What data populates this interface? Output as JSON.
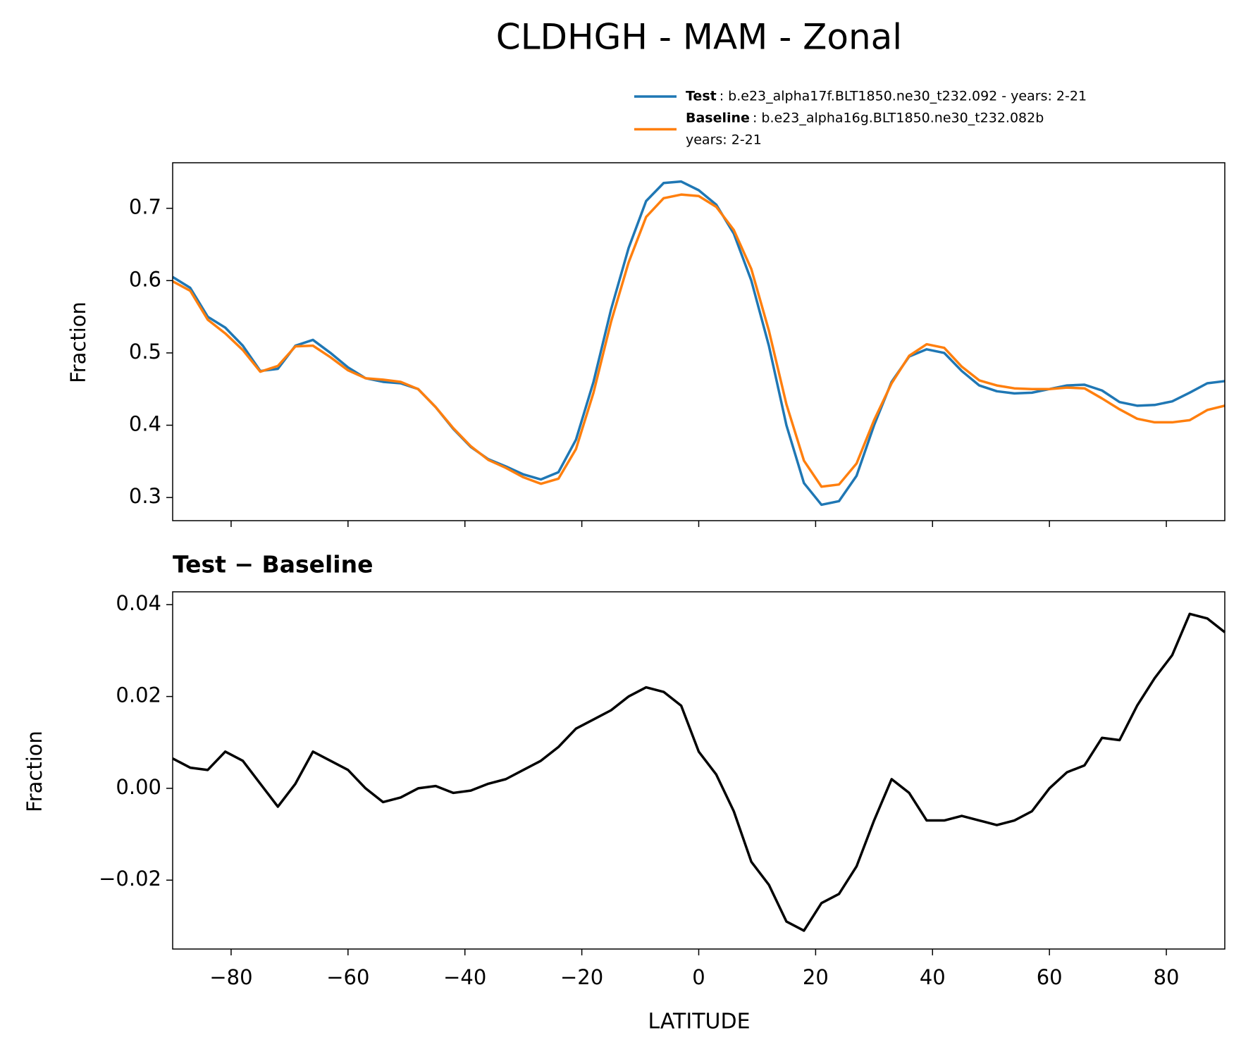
{
  "chart_data": [
    {
      "type": "line",
      "title": "CLDHGH - MAM - Zonal",
      "y_label": "Fraction",
      "x": [
        -90,
        -87,
        -84,
        -81,
        -78,
        -75,
        -72,
        -69,
        -66,
        -63,
        -60,
        -57,
        -54,
        -51,
        -48,
        -45,
        -42,
        -39,
        -36,
        -33,
        -30,
        -27,
        -24,
        -21,
        -18,
        -15,
        -12,
        -9,
        -6,
        -3,
        0,
        3,
        6,
        9,
        12,
        15,
        18,
        21,
        24,
        27,
        30,
        33,
        36,
        39,
        42,
        45,
        48,
        51,
        54,
        57,
        60,
        63,
        66,
        69,
        72,
        75,
        78,
        81,
        84,
        87,
        90
      ],
      "series": [
        {
          "name": "Test",
          "description": [
            ": b.e23_alpha17f.BLT1850.ne30_t232.092 - years: 2-21"
          ],
          "color": "#1f77b4",
          "values": [
            0.605,
            0.59,
            0.55,
            0.535,
            0.51,
            0.475,
            0.478,
            0.51,
            0.518,
            0.5,
            0.48,
            0.465,
            0.46,
            0.458,
            0.45,
            0.425,
            0.395,
            0.37,
            0.353,
            0.343,
            0.332,
            0.325,
            0.335,
            0.38,
            0.46,
            0.56,
            0.645,
            0.71,
            0.735,
            0.737,
            0.725,
            0.705,
            0.665,
            0.6,
            0.51,
            0.4,
            0.32,
            0.29,
            0.295,
            0.33,
            0.4,
            0.46,
            0.495,
            0.505,
            0.5,
            0.475,
            0.455,
            0.447,
            0.444,
            0.445,
            0.45,
            0.455,
            0.456,
            0.448,
            0.432,
            0.427,
            0.428,
            0.433,
            0.445,
            0.458,
            0.461
          ]
        },
        {
          "name": "Baseline",
          "description": [
            ": b.e23_alpha16g.BLT1850.ne30_t232.082b",
            "years: 2-21"
          ],
          "color": "#ff7f0e",
          "values": [
            0.599,
            0.586,
            0.546,
            0.527,
            0.504,
            0.474,
            0.482,
            0.509,
            0.51,
            0.494,
            0.476,
            0.465,
            0.463,
            0.46,
            0.45,
            0.425,
            0.396,
            0.371,
            0.352,
            0.341,
            0.328,
            0.319,
            0.326,
            0.367,
            0.445,
            0.543,
            0.625,
            0.688,
            0.714,
            0.719,
            0.717,
            0.702,
            0.67,
            0.616,
            0.531,
            0.429,
            0.351,
            0.315,
            0.318,
            0.347,
            0.407,
            0.458,
            0.496,
            0.512,
            0.507,
            0.481,
            0.462,
            0.455,
            0.451,
            0.45,
            0.45,
            0.452,
            0.451,
            0.437,
            0.422,
            0.409,
            0.404,
            0.404,
            0.407,
            0.421,
            0.427
          ]
        }
      ],
      "xlim": [
        -90,
        90
      ],
      "xticks": [
        -80,
        -60,
        -40,
        -20,
        0,
        20,
        40,
        60,
        80
      ],
      "ylim": [
        0.268,
        0.763
      ],
      "yticks": [
        0.3,
        0.4,
        0.5,
        0.6,
        0.7
      ]
    },
    {
      "type": "line",
      "title": "Test − Baseline",
      "y_label": "Fraction",
      "x_label": "LATITUDE",
      "x": [
        -90,
        -87,
        -84,
        -81,
        -78,
        -75,
        -72,
        -69,
        -66,
        -63,
        -60,
        -57,
        -54,
        -51,
        -48,
        -45,
        -42,
        -39,
        -36,
        -33,
        -30,
        -27,
        -24,
        -21,
        -18,
        -15,
        -12,
        -9,
        -6,
        -3,
        0,
        3,
        6,
        9,
        12,
        15,
        18,
        21,
        24,
        27,
        30,
        33,
        36,
        39,
        42,
        45,
        48,
        51,
        54,
        57,
        60,
        63,
        66,
        69,
        72,
        75,
        78,
        81,
        84,
        87,
        90
      ],
      "series": [
        {
          "color": "#000000",
          "values": [
            0.0065,
            0.0045,
            0.004,
            0.008,
            0.006,
            0.001,
            -0.004,
            0.001,
            0.008,
            0.006,
            0.004,
            0.0,
            -0.003,
            -0.002,
            0.0,
            0.0005,
            -0.001,
            -0.0005,
            0.001,
            0.002,
            0.004,
            0.006,
            0.009,
            0.013,
            0.015,
            0.017,
            0.02,
            0.022,
            0.021,
            0.018,
            0.008,
            0.003,
            -0.005,
            -0.016,
            -0.021,
            -0.029,
            -0.031,
            -0.025,
            -0.023,
            -0.017,
            -0.007,
            0.002,
            -0.001,
            -0.007,
            -0.007,
            -0.006,
            -0.007,
            -0.008,
            -0.007,
            -0.005,
            0.0,
            0.0035,
            0.005,
            0.011,
            0.0105,
            0.018,
            0.024,
            0.029,
            0.038,
            0.037,
            0.034
          ]
        }
      ],
      "xlim": [
        -90,
        90
      ],
      "xticks": [
        {
          "value": -80,
          "label": "−80"
        },
        {
          "value": -60,
          "label": "−60"
        },
        {
          "value": -40,
          "label": "−40"
        },
        {
          "value": -20,
          "label": "−20"
        },
        0,
        20,
        40,
        60,
        80
      ],
      "ylim": [
        -0.035,
        0.0428
      ],
      "yticks": [
        {
          "value": -0.02,
          "label": "−0.02"
        },
        {
          "value": 0,
          "label": "0.00"
        },
        {
          "value": 0.02,
          "label": "0.02"
        },
        {
          "value": 0.04,
          "label": "0.04"
        }
      ]
    }
  ]
}
